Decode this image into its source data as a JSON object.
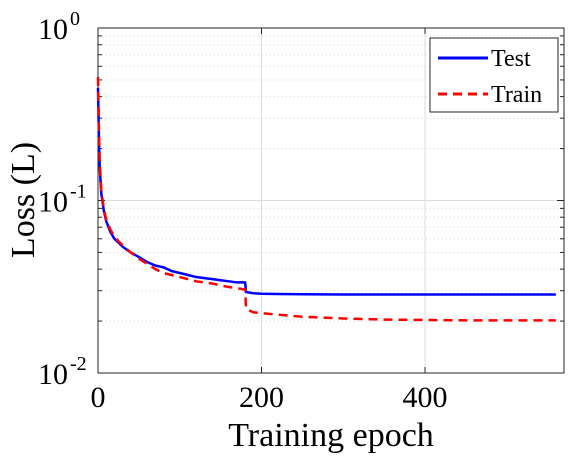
{
  "chart_data": {
    "type": "line",
    "title": "",
    "xlabel": "Training epoch",
    "ylabel": "Loss (L)",
    "xlim": [
      0,
      570
    ],
    "ylim": [
      0.01,
      1
    ],
    "yscale": "log",
    "grid": true,
    "legend_position": "top-right",
    "x_ticks": [
      {
        "value": 0,
        "label": "0"
      },
      {
        "value": 200,
        "label": "200"
      },
      {
        "value": 400,
        "label": "400"
      }
    ],
    "y_ticks": [
      {
        "value": 1,
        "base": "10",
        "exp": "0"
      },
      {
        "value": 0.1,
        "base": "10",
        "exp": "-1"
      },
      {
        "value": 0.01,
        "base": "10",
        "exp": "-2"
      }
    ],
    "series": [
      {
        "name": "Test",
        "color": "#0000ff",
        "style": "solid",
        "x": [
          0,
          1,
          2,
          4,
          7,
          10,
          15,
          20,
          25,
          30,
          40,
          50,
          60,
          70,
          80,
          90,
          100,
          110,
          120,
          130,
          140,
          150,
          160,
          170,
          180,
          181,
          190,
          200,
          220,
          250,
          300,
          350,
          400,
          450,
          500,
          560
        ],
        "y": [
          0.45,
          0.25,
          0.16,
          0.11,
          0.088,
          0.076,
          0.066,
          0.06,
          0.057,
          0.054,
          0.05,
          0.047,
          0.044,
          0.042,
          0.041,
          0.039,
          0.038,
          0.037,
          0.036,
          0.0355,
          0.035,
          0.0345,
          0.034,
          0.0335,
          0.0335,
          0.0295,
          0.029,
          0.0288,
          0.0287,
          0.0286,
          0.0285,
          0.0285,
          0.0285,
          0.0285,
          0.0285,
          0.0285
        ]
      },
      {
        "name": "Train",
        "color": "#ff0000",
        "style": "dashed",
        "x": [
          0,
          1,
          2,
          4,
          7,
          10,
          15,
          20,
          25,
          30,
          40,
          50,
          60,
          70,
          80,
          90,
          100,
          110,
          120,
          130,
          140,
          150,
          160,
          170,
          180,
          181,
          190,
          200,
          220,
          250,
          300,
          350,
          400,
          450,
          500,
          560
        ],
        "y": [
          0.52,
          0.28,
          0.17,
          0.115,
          0.09,
          0.078,
          0.068,
          0.062,
          0.058,
          0.055,
          0.05,
          0.046,
          0.043,
          0.04,
          0.038,
          0.037,
          0.036,
          0.035,
          0.034,
          0.0335,
          0.033,
          0.0322,
          0.0315,
          0.031,
          0.0305,
          0.0235,
          0.0225,
          0.0222,
          0.0218,
          0.0212,
          0.0207,
          0.0204,
          0.0203,
          0.0202,
          0.0202,
          0.0202
        ]
      }
    ]
  }
}
